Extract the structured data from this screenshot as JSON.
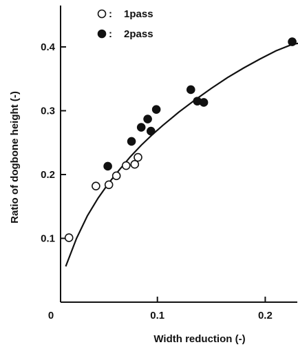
{
  "chart_data": {
    "type": "scatter",
    "title": "",
    "xlabel": "Width reduction (-)",
    "ylabel": "Ratio of dogbone height (-)",
    "xlim": [
      0,
      0.245
    ],
    "ylim": [
      0,
      0.455
    ],
    "x_ticks": [
      0,
      0.1,
      0.2
    ],
    "x_tick_labels": [
      "0",
      "0.1",
      "0.2"
    ],
    "y_ticks": [
      0.1,
      0.2,
      0.3,
      0.4
    ],
    "y_tick_labels": [
      "0.1",
      "0.2",
      "0.3",
      "0.4"
    ],
    "grid": false,
    "legend_position": "top-left",
    "legend_separator": ":",
    "series": [
      {
        "name": "1pass",
        "marker": "open-circle",
        "points": [
          {
            "x": 0.018,
            "y": 0.101
          },
          {
            "x": 0.043,
            "y": 0.182
          },
          {
            "x": 0.055,
            "y": 0.184
          },
          {
            "x": 0.062,
            "y": 0.198
          },
          {
            "x": 0.071,
            "y": 0.214
          },
          {
            "x": 0.079,
            "y": 0.216
          },
          {
            "x": 0.082,
            "y": 0.227
          }
        ]
      },
      {
        "name": "2pass",
        "marker": "filled-circle",
        "points": [
          {
            "x": 0.054,
            "y": 0.213
          },
          {
            "x": 0.076,
            "y": 0.252
          },
          {
            "x": 0.085,
            "y": 0.274
          },
          {
            "x": 0.091,
            "y": 0.287
          },
          {
            "x": 0.094,
            "y": 0.268
          },
          {
            "x": 0.099,
            "y": 0.302
          },
          {
            "x": 0.131,
            "y": 0.333
          },
          {
            "x": 0.137,
            "y": 0.315
          },
          {
            "x": 0.143,
            "y": 0.313
          },
          {
            "x": 0.225,
            "y": 0.408
          }
        ]
      }
    ],
    "fit_curve": {
      "style": "solid",
      "points": [
        {
          "x": 0.015,
          "y": 0.056
        },
        {
          "x": 0.025,
          "y": 0.1
        },
        {
          "x": 0.035,
          "y": 0.135
        },
        {
          "x": 0.045,
          "y": 0.163
        },
        {
          "x": 0.055,
          "y": 0.187
        },
        {
          "x": 0.065,
          "y": 0.208
        },
        {
          "x": 0.075,
          "y": 0.228
        },
        {
          "x": 0.085,
          "y": 0.246
        },
        {
          "x": 0.095,
          "y": 0.262
        },
        {
          "x": 0.105,
          "y": 0.277
        },
        {
          "x": 0.12,
          "y": 0.298
        },
        {
          "x": 0.135,
          "y": 0.317
        },
        {
          "x": 0.15,
          "y": 0.335
        },
        {
          "x": 0.165,
          "y": 0.352
        },
        {
          "x": 0.18,
          "y": 0.367
        },
        {
          "x": 0.195,
          "y": 0.381
        },
        {
          "x": 0.21,
          "y": 0.394
        },
        {
          "x": 0.225,
          "y": 0.404
        },
        {
          "x": 0.232,
          "y": 0.406
        }
      ]
    }
  }
}
